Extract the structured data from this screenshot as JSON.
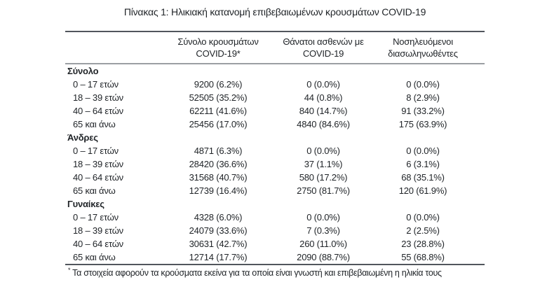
{
  "title": "Πίνακας 1: Ηλικιακή κατανομή επιβεβαιωμένων κρουσμάτων COVID-19",
  "table": {
    "columns": [
      {
        "line1": "",
        "line2": ""
      },
      {
        "line1": "Σύνολο κρουσμάτων",
        "line2": "COVID-19*"
      },
      {
        "line1": "Θάνατοι ασθενών με",
        "line2": "COVID-19"
      },
      {
        "line1": "Νοσηλευόμενοι",
        "line2": "διασωληνωθέντες"
      }
    ],
    "sections": [
      {
        "header": "Σύνολο",
        "rows": [
          {
            "label": "0 – 17 ετών",
            "cases": "9200 (6.2%)",
            "deaths": "0 (0.0%)",
            "intubated": "0 (0.0%)"
          },
          {
            "label": "18 – 39 ετών",
            "cases": "52505 (35.2%)",
            "deaths": "44 (0.8%)",
            "intubated": "8 (2.9%)"
          },
          {
            "label": "40 – 64 ετών",
            "cases": "62211 (41.6%)",
            "deaths": "840 (14.7%)",
            "intubated": "91 (33.2%)"
          },
          {
            "label": "65 και άνω",
            "cases": "25456 (17.0%)",
            "deaths": "4840 (84.6%)",
            "intubated": "175 (63.9%)"
          }
        ]
      },
      {
        "header": "Άνδρες",
        "rows": [
          {
            "label": "0 – 17 ετών",
            "cases": "4871 (6.3%)",
            "deaths": "0 (0.0%)",
            "intubated": "0 (0.0%)"
          },
          {
            "label": "18 – 39 ετών",
            "cases": "28420 (36.6%)",
            "deaths": "37 (1.1%)",
            "intubated": "6 (3.1%)"
          },
          {
            "label": "40 – 64 ετών",
            "cases": "31568 (40.7%)",
            "deaths": "580 (17.2%)",
            "intubated": "68 (35.1%)"
          },
          {
            "label": "65 και άνω",
            "cases": "12739 (16.4%)",
            "deaths": "2750 (81.7%)",
            "intubated": "120 (61.9%)"
          }
        ]
      },
      {
        "header": "Γυναίκες",
        "rows": [
          {
            "label": "0 – 17 ετών",
            "cases": "4328 (6.0%)",
            "deaths": "0 (0.0%)",
            "intubated": "0 (0.0%)"
          },
          {
            "label": "18 – 39 ετών",
            "cases": "24079 (33.6%)",
            "deaths": "7 (0.3%)",
            "intubated": "2 (2.5%)"
          },
          {
            "label": "40 – 64 ετών",
            "cases": "30631 (42.7%)",
            "deaths": "260 (11.0%)",
            "intubated": "23 (28.8%)"
          },
          {
            "label": "65 και άνω",
            "cases": "12714 (17.7%)",
            "deaths": "2090 (88.7%)",
            "intubated": "55 (68.8%)"
          }
        ]
      }
    ]
  },
  "footnote": {
    "marker": "*",
    "text": "Τα στοιχεία αφορούν τα κρούσματα εκείνα για τα οποία είναι γνωστή και επιβεβαιωμένη η ηλικία τους"
  },
  "colors": {
    "text": "#212529",
    "rule_dark": "#51565c",
    "rule_light": "#9b9fa3",
    "background": "#ffffff"
  }
}
